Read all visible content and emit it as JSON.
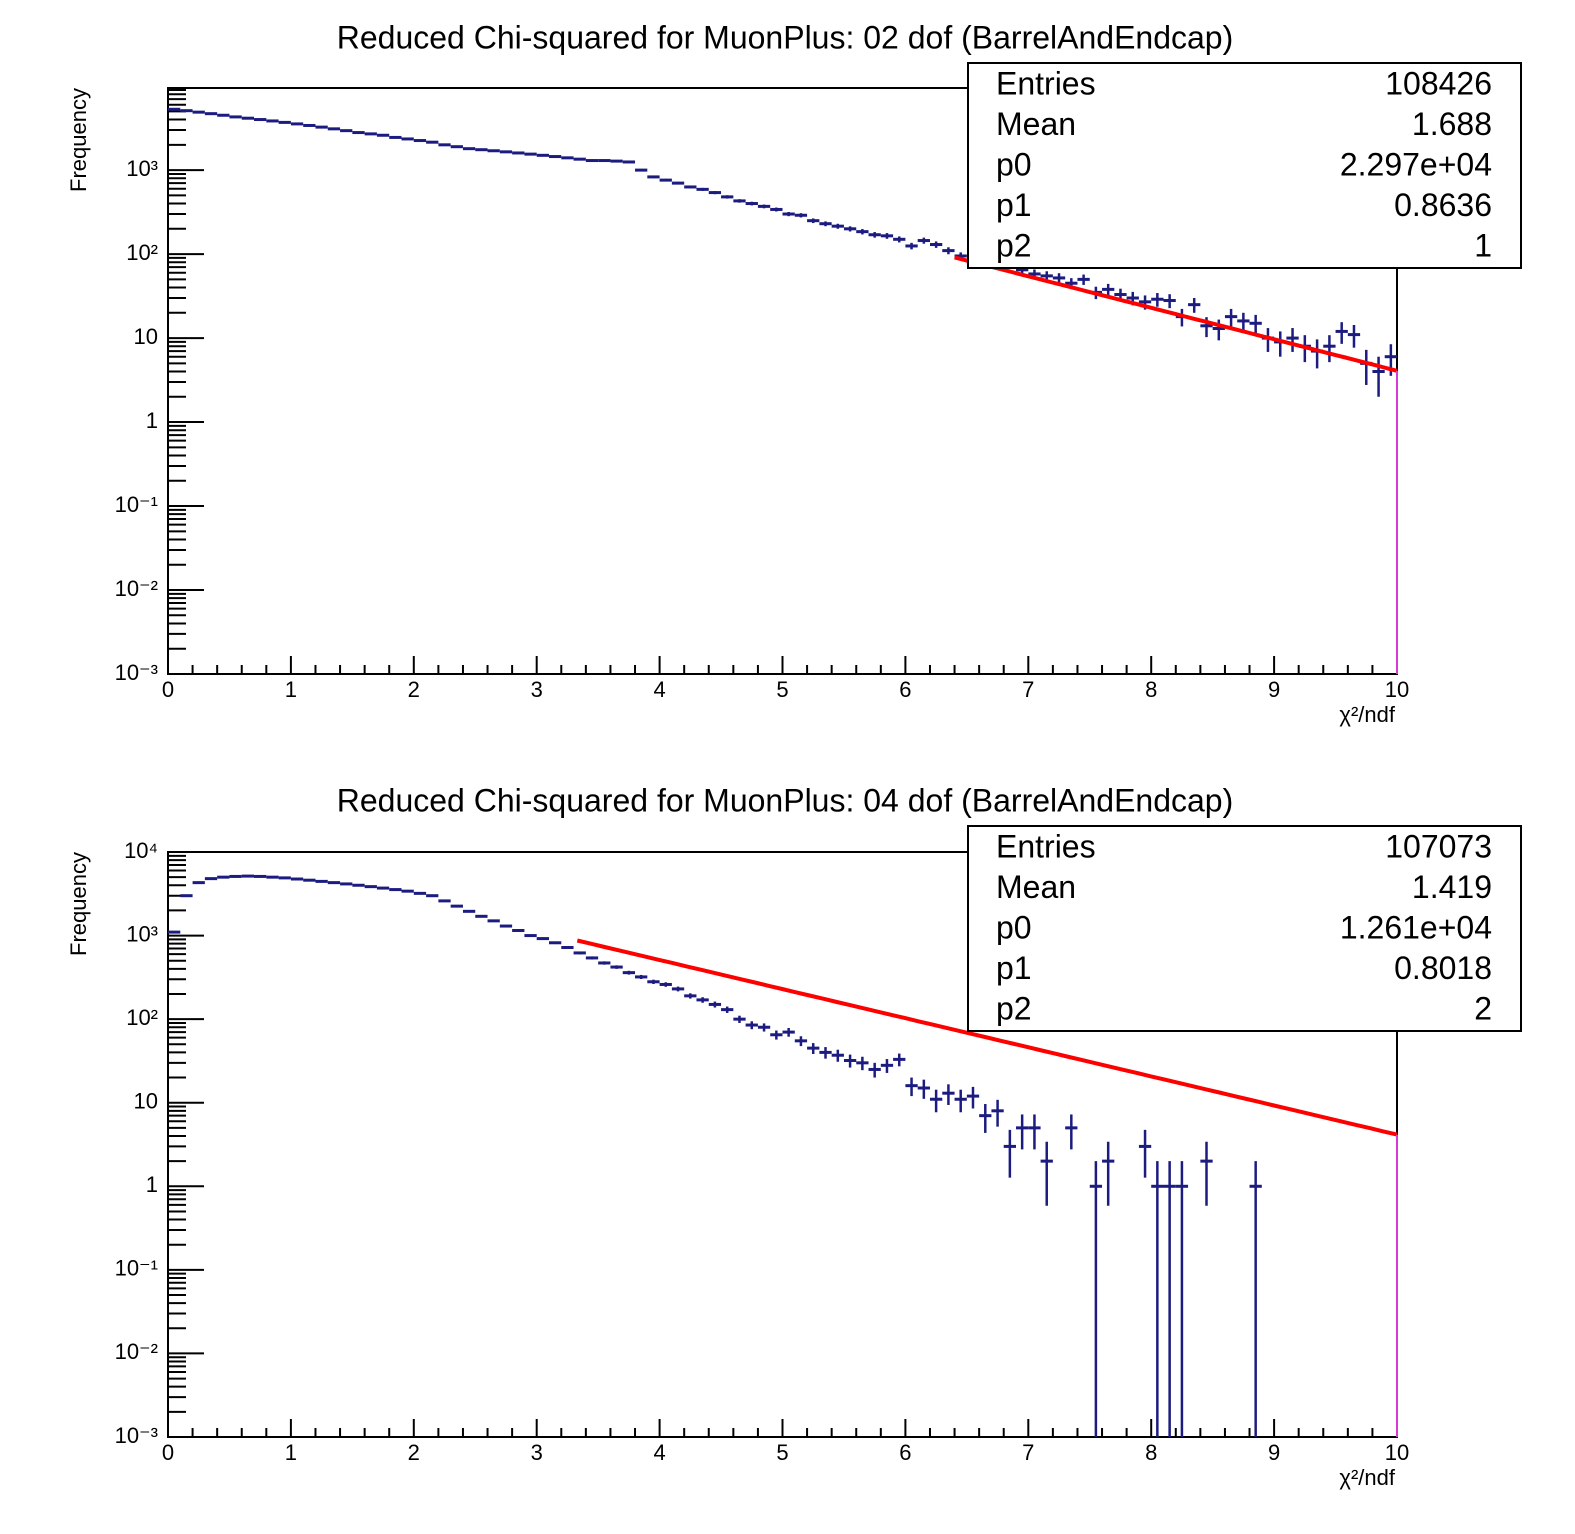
{
  "chart_data": [
    {
      "type": "histogram",
      "title": "Reduced Chi-squared for MuonPlus: 02 dof (BarrelAndEndcap)",
      "x_label": "χ²/ndf",
      "y_label": "Frequency",
      "color": "#1c1c80",
      "bins": [
        0,
        0.1,
        0.2,
        0.3,
        0.4,
        0.5,
        0.6,
        0.7,
        0.8,
        0.9,
        1,
        1.1,
        1.2,
        1.3,
        1.4,
        1.5,
        1.6,
        1.7,
        1.8,
        1.9,
        2,
        2.1,
        2.2,
        2.3,
        2.4,
        2.5,
        2.6,
        2.7,
        2.8,
        2.9,
        3,
        3.1,
        3.2,
        3.3,
        3.4,
        3.5,
        3.6,
        3.7,
        3.8,
        3.9,
        4,
        4.1,
        4.2,
        4.3,
        4.4,
        4.5,
        4.6,
        4.7,
        4.8,
        4.9,
        5,
        5.1,
        5.2,
        5.3,
        5.4,
        5.5,
        5.6,
        5.7,
        5.8,
        5.9,
        6,
        6.1,
        6.2,
        6.3,
        6.4,
        6.5,
        6.6,
        6.7,
        6.8,
        6.9,
        7,
        7.1,
        7.2,
        7.3,
        7.4,
        7.5,
        7.6,
        7.7,
        7.8,
        7.9,
        8,
        8.1,
        8.2,
        8.3,
        8.4,
        8.5,
        8.6,
        8.7,
        8.8,
        8.9,
        9,
        9.1,
        9.2,
        9.3,
        9.4,
        9.5,
        9.6,
        9.7,
        9.8,
        9.9,
        10
      ],
      "values": [
        5300,
        5100,
        4900,
        4700,
        4500,
        4300,
        4150,
        4000,
        3850,
        3700,
        3550,
        3400,
        3250,
        3100,
        2950,
        2800,
        2700,
        2600,
        2450,
        2350,
        2250,
        2150,
        2000,
        1900,
        1800,
        1750,
        1700,
        1650,
        1600,
        1550,
        1500,
        1450,
        1400,
        1350,
        1300,
        1300,
        1280,
        1250,
        1000,
        830,
        760,
        700,
        630,
        590,
        540,
        480,
        430,
        400,
        370,
        340,
        300,
        290,
        250,
        230,
        215,
        200,
        185,
        170,
        165,
        150,
        125,
        145,
        130,
        110,
        95,
        80,
        90,
        85,
        75,
        65,
        58,
        55,
        52,
        45,
        50,
        35,
        38,
        33,
        30,
        27,
        29,
        28,
        18,
        25,
        14,
        13,
        18,
        16,
        15,
        10,
        9,
        10,
        8,
        7,
        8,
        12,
        11,
        5,
        4,
        6
      ],
      "xlim": [
        0,
        10
      ],
      "xticks": [
        0,
        1,
        2,
        3,
        4,
        5,
        6,
        7,
        8,
        9,
        10
      ],
      "ylim": [
        0.001,
        9500
      ],
      "log_y": true,
      "yticks": [
        {
          "value": 0.001,
          "label": "10⁻³"
        },
        {
          "value": 0.01,
          "label": "10⁻²"
        },
        {
          "value": 0.1,
          "label": "10⁻¹"
        },
        1,
        10,
        {
          "value": 100,
          "label": "10²"
        },
        {
          "value": 1000,
          "label": "10³"
        }
      ],
      "fit": {
        "color": "#ff0000",
        "range": [
          6.4,
          10
        ]
      },
      "stats": [
        {
          "name": "Entries",
          "value": 108426
        },
        {
          "name": "Mean",
          "value": 1.688
        },
        {
          "name": "p0",
          "value": {
            "value": 22970,
            "label": "2.297e+04"
          }
        },
        {
          "name": "p1",
          "value": 0.8636
        },
        {
          "name": "p2",
          "value": 1
        }
      ]
    },
    {
      "type": "histogram",
      "title": "Reduced Chi-squared for MuonPlus: 04 dof (BarrelAndEndcap)",
      "x_label": "χ²/ndf",
      "y_label": "Frequency",
      "color": "#1c1c80",
      "bins": [
        0,
        0.1,
        0.2,
        0.3,
        0.4,
        0.5,
        0.6,
        0.7,
        0.8,
        0.9,
        1,
        1.1,
        1.2,
        1.3,
        1.4,
        1.5,
        1.6,
        1.7,
        1.8,
        1.9,
        2,
        2.1,
        2.2,
        2.3,
        2.4,
        2.5,
        2.6,
        2.7,
        2.8,
        2.9,
        3,
        3.1,
        3.2,
        3.3,
        3.4,
        3.5,
        3.6,
        3.7,
        3.8,
        3.9,
        4,
        4.1,
        4.2,
        4.3,
        4.4,
        4.5,
        4.6,
        4.7,
        4.8,
        4.9,
        5,
        5.1,
        5.2,
        5.3,
        5.4,
        5.5,
        5.6,
        5.7,
        5.8,
        5.9,
        6,
        6.1,
        6.2,
        6.3,
        6.4,
        6.5,
        6.6,
        6.7,
        6.8,
        6.9,
        7,
        7.1,
        7.2,
        7.3,
        7.4,
        7.5,
        7.6,
        7.7,
        7.8,
        7.9,
        8,
        8.1,
        8.2,
        8.3,
        8.4,
        8.5,
        8.6,
        8.7,
        8.8,
        8.9,
        9,
        9.1,
        9.2,
        9.3,
        9.4,
        9.5,
        9.6,
        9.7,
        9.8,
        9.9,
        10
      ],
      "values": [
        1100,
        3000,
        4300,
        4800,
        5000,
        5100,
        5150,
        5100,
        5000,
        4900,
        4750,
        4600,
        4450,
        4300,
        4150,
        4000,
        3850,
        3700,
        3550,
        3400,
        3200,
        3000,
        2600,
        2250,
        1950,
        1700,
        1500,
        1300,
        1150,
        1000,
        920,
        820,
        720,
        620,
        540,
        470,
        420,
        360,
        320,
        280,
        260,
        230,
        190,
        170,
        150,
        130,
        100,
        85,
        80,
        65,
        70,
        55,
        45,
        40,
        37,
        32,
        30,
        25,
        28,
        33,
        16,
        15,
        11,
        13,
        11,
        12,
        7,
        8,
        3,
        5,
        5,
        2,
        0,
        5,
        0,
        1,
        2,
        0,
        0,
        3,
        1,
        1,
        1,
        0,
        2,
        0,
        0,
        0,
        1,
        0,
        0,
        0,
        0,
        0,
        0,
        0,
        0,
        0,
        0,
        0
      ],
      "xlim": [
        0,
        10
      ],
      "xticks": [
        0,
        1,
        2,
        3,
        4,
        5,
        6,
        7,
        8,
        9,
        10
      ],
      "ylim": [
        0.001,
        10000
      ],
      "log_y": true,
      "yticks": [
        {
          "value": 0.001,
          "label": "10⁻³"
        },
        {
          "value": 0.01,
          "label": "10⁻²"
        },
        {
          "value": 0.1,
          "label": "10⁻¹"
        },
        1,
        10,
        {
          "value": 100,
          "label": "10²"
        },
        {
          "value": 1000,
          "label": "10³"
        },
        {
          "value": 10000,
          "label": "10⁴"
        }
      ],
      "fit": {
        "color": "#ff0000",
        "range": [
          3.33,
          10
        ]
      },
      "stats": [
        {
          "name": "Entries",
          "value": 107073
        },
        {
          "name": "Mean",
          "value": 1.419
        },
        {
          "name": "p0",
          "value": {
            "value": 12610,
            "label": "1.261e+04"
          }
        },
        {
          "name": "p1",
          "value": 0.8018
        },
        {
          "name": "p2",
          "value": 2
        }
      ]
    }
  ]
}
